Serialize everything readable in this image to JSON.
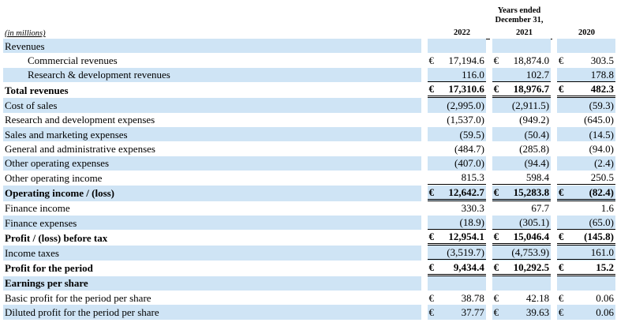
{
  "header": {
    "period_title": "Years ended December 31,",
    "unit_label": "(in millions)",
    "years": [
      "2022",
      "2021",
      "2020"
    ]
  },
  "rows": [
    {
      "label": "Revenues",
      "values": [
        "",
        "",
        ""
      ]
    },
    {
      "label": "Commercial revenues",
      "values": [
        "€17,194.6",
        "€18,874.0",
        "€ 303.5"
      ]
    },
    {
      "label": "Research & development revenues",
      "values": [
        "116.0",
        "102.7",
        "178.8"
      ]
    },
    {
      "label": "Total revenues",
      "values": [
        "€17,310.6",
        "€18,976.7",
        "€ 482.3"
      ]
    },
    {
      "label": "Cost of sales",
      "values": [
        "(2,995.0)",
        "(2,911.5)",
        "(59.3)"
      ]
    },
    {
      "label": "Research and development expenses",
      "values": [
        "(1,537.0)",
        "(949.2)",
        "(645.0)"
      ]
    },
    {
      "label": "Sales and marketing expenses",
      "values": [
        "(59.5)",
        "(50.4)",
        "(14.5)"
      ]
    },
    {
      "label": "General and administrative expenses",
      "values": [
        "(484.7)",
        "(285.8)",
        "(94.0)"
      ]
    },
    {
      "label": "Other operating expenses",
      "values": [
        "(407.0)",
        "(94.4)",
        "(2.4)"
      ]
    },
    {
      "label": "Other operating income",
      "values": [
        "815.3",
        "598.4",
        "250.5"
      ]
    },
    {
      "label": "Operating income / (loss)",
      "values": [
        "€12,642.7",
        "€15,283.8",
        "€ (82.4)"
      ]
    },
    {
      "label": "Finance income",
      "values": [
        "330.3",
        "67.7",
        "1.6"
      ]
    },
    {
      "label": "Finance expenses",
      "values": [
        "(18.9)",
        "(305.1)",
        "(65.0)"
      ]
    },
    {
      "label": "Profit / (loss) before tax",
      "values": [
        "€12,954.1",
        "€15,046.4",
        "€(145.8)"
      ]
    },
    {
      "label": "Income taxes",
      "values": [
        "(3,519.7)",
        "(4,753.9)",
        "161.0"
      ]
    },
    {
      "label": "Profit for the period",
      "values": [
        "€ 9,434.4",
        "€10,292.5",
        "€ 15.2"
      ]
    },
    {
      "label": "Earnings per share",
      "values": [
        "",
        "",
        ""
      ]
    },
    {
      "label": "Basic profit for the period per share",
      "values": [
        "€ 38.78",
        "€ 42.18",
        "€ 0.06"
      ]
    },
    {
      "label": "Diluted profit for the period per share",
      "values": [
        "€ 37.77",
        "€ 39.63",
        "€ 0.06"
      ]
    }
  ]
}
